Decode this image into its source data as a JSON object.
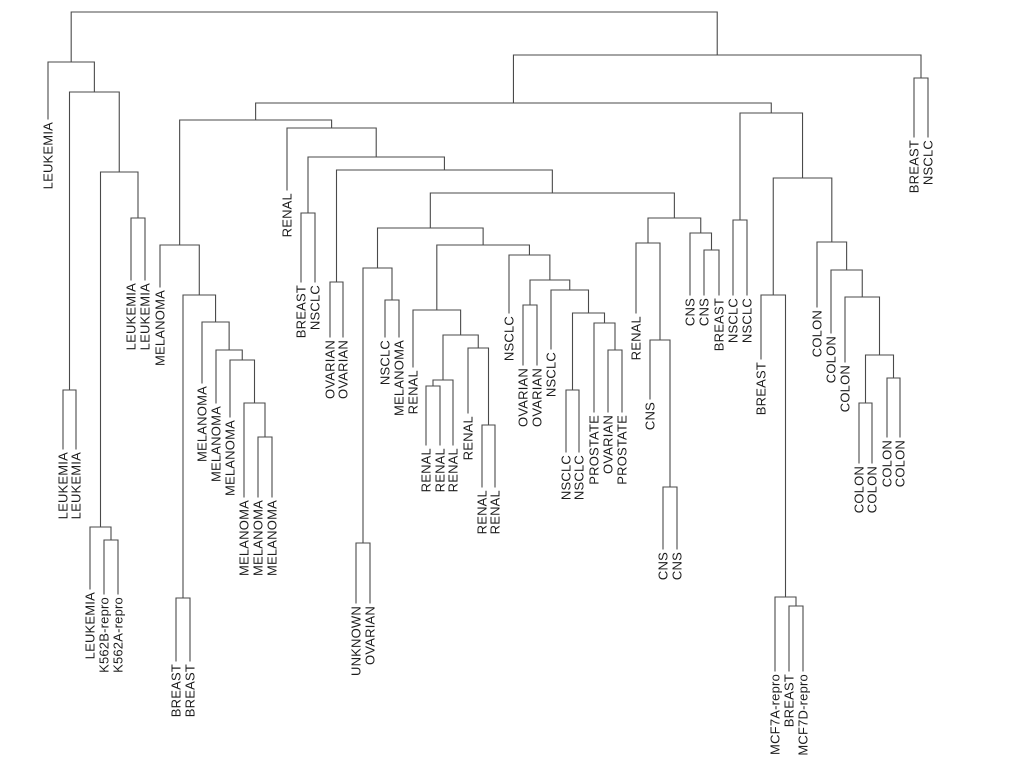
{
  "dendrogram": {
    "leaves": [
      "LEUKEMIA",
      "LEUKEMIA",
      "LEUKEMIA",
      "LEUKEMIA",
      "K562B-repro",
      "K562A-repro",
      "LEUKEMIA",
      "LEUKEMIA",
      "MELANOMA",
      "BREAST",
      "BREAST",
      "MELANOMA",
      "MELANOMA",
      "MELANOMA",
      "MELANOMA",
      "MELANOMA",
      "MELANOMA",
      "RENAL",
      "BREAST",
      "NSCLC",
      "OVARIAN",
      "OVARIAN",
      "UNKNOWN",
      "OVARIAN",
      "NSCLC",
      "MELANOMA",
      "RENAL",
      "RENAL",
      "RENAL",
      "RENAL",
      "RENAL",
      "RENAL",
      "RENAL",
      "NSCLC",
      "OVARIAN",
      "OVARIAN",
      "NSCLC",
      "NSCLC",
      "NSCLC",
      "PROSTATE",
      "OVARIAN",
      "PROSTATE",
      "RENAL",
      "CNS",
      "CNS",
      "CNS",
      "CNS",
      "CNS",
      "BREAST",
      "NSCLC",
      "NSCLC",
      "BREAST",
      "MCF7A-repro",
      "BREAST",
      "MCF7D-repro",
      "COLON",
      "COLON",
      "COLON",
      "COLON",
      "COLON",
      "COLON",
      "COLON",
      "BREAST",
      "NSCLC"
    ]
  },
  "colors": {
    "background": "#ffffff",
    "line": "#4a4a4a",
    "text": "#1c1c1c"
  }
}
